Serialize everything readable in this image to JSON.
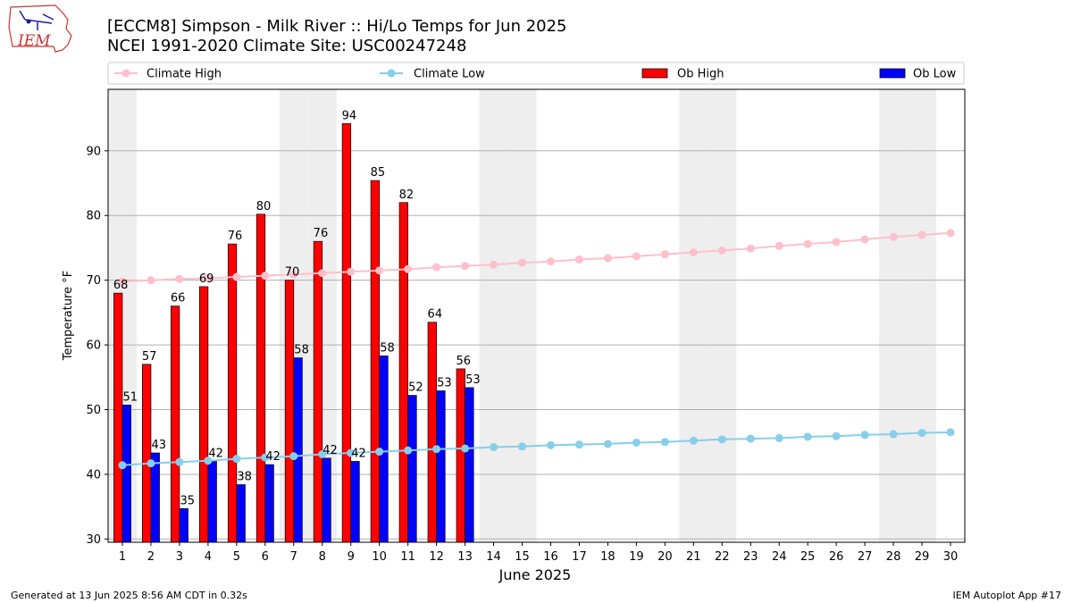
{
  "header": {
    "title_line1": "[ECCM8] Simpson - Milk River :: Hi/Lo Temps for Jun 2025",
    "title_line2": "NCEI 1991-2020 Climate Site: USC00247248",
    "logo_text": "IEM"
  },
  "footer": {
    "left": "Generated at 13 Jun 2025 8:56 AM CDT in 0.32s",
    "right": "IEM Autoplot App #17"
  },
  "colors": {
    "ob_high": "#ff0000",
    "ob_low": "#0000ff",
    "climate_high": "#ffc0cb",
    "climate_low": "#87ceeb",
    "weekend_shade": "#eeeeee",
    "grid": "#b0b0b0",
    "logo": "#cc3333"
  },
  "chart_data": {
    "type": "bar",
    "xlabel": "June 2025",
    "ylabel": "Temperature °F",
    "ylim": [
      29.5,
      99.5
    ],
    "yticks": [
      30,
      40,
      50,
      60,
      70,
      80,
      90
    ],
    "x_days": [
      1,
      2,
      3,
      4,
      5,
      6,
      7,
      8,
      9,
      10,
      11,
      12,
      13,
      14,
      15,
      16,
      17,
      18,
      19,
      20,
      21,
      22,
      23,
      24,
      25,
      26,
      27,
      28,
      29,
      30
    ],
    "x_ticklabels": [
      "1",
      "2",
      "3",
      "4",
      "5",
      "6",
      "7",
      "8",
      "9",
      "10",
      "11",
      "12",
      "13",
      "14",
      "15",
      "16",
      "17",
      "18",
      "19",
      "20",
      "21",
      "22",
      "23",
      "24",
      "25",
      "26",
      "27",
      "28",
      "29",
      "30"
    ],
    "grid": "horizontal",
    "legend_position": "top",
    "legend": [
      "Climate High",
      "Climate Low",
      "Ob High",
      "Ob Low"
    ],
    "shaded_days": [
      1,
      7,
      8,
      14,
      15,
      21,
      22,
      28,
      29
    ],
    "series": [
      {
        "name": "Ob High",
        "kind": "bar",
        "days": [
          1,
          2,
          3,
          4,
          5,
          6,
          7,
          8,
          9,
          10,
          11,
          12,
          13
        ],
        "values": [
          68,
          57,
          66,
          69,
          75.6,
          80.2,
          70,
          76,
          94.2,
          85.4,
          82,
          63.5,
          56.3
        ],
        "labels": [
          "68",
          "57",
          "66",
          "69",
          "76",
          "80",
          "70",
          "76",
          "94",
          "85",
          "82",
          "64",
          "56"
        ]
      },
      {
        "name": "Ob Low",
        "kind": "bar",
        "days": [
          1,
          2,
          3,
          4,
          5,
          6,
          7,
          8,
          9,
          10,
          11,
          12,
          13
        ],
        "values": [
          50.7,
          43.3,
          34.7,
          42,
          38.4,
          41.5,
          58,
          42.5,
          42,
          58.3,
          52.2,
          52.9,
          53.4
        ],
        "labels": [
          "51",
          "43",
          "35",
          "42",
          "38",
          "42",
          "58",
          "42",
          "42",
          "58",
          "52",
          "53",
          "53"
        ]
      },
      {
        "name": "Climate High",
        "kind": "line",
        "days": [
          1,
          2,
          3,
          4,
          5,
          6,
          7,
          8,
          9,
          10,
          11,
          12,
          13,
          14,
          15,
          16,
          17,
          18,
          19,
          20,
          21,
          22,
          23,
          24,
          25,
          26,
          27,
          28,
          29,
          30
        ],
        "values": [
          69.8,
          70.0,
          70.2,
          70.3,
          70.5,
          70.7,
          70.9,
          71.1,
          71.3,
          71.5,
          71.7,
          72.0,
          72.2,
          72.4,
          72.7,
          72.9,
          73.2,
          73.4,
          73.7,
          74.0,
          74.3,
          74.6,
          74.9,
          75.3,
          75.6,
          75.9,
          76.3,
          76.7,
          77.0,
          77.3
        ]
      },
      {
        "name": "Climate Low",
        "kind": "line",
        "days": [
          1,
          2,
          3,
          4,
          5,
          6,
          7,
          8,
          9,
          10,
          11,
          12,
          13,
          14,
          15,
          16,
          17,
          18,
          19,
          20,
          21,
          22,
          23,
          24,
          25,
          26,
          27,
          28,
          29,
          30
        ],
        "values": [
          41.4,
          41.7,
          41.9,
          42.1,
          42.4,
          42.6,
          42.8,
          43.1,
          43.3,
          43.5,
          43.7,
          43.9,
          44.0,
          44.2,
          44.3,
          44.5,
          44.6,
          44.7,
          44.9,
          45.0,
          45.2,
          45.4,
          45.5,
          45.6,
          45.8,
          45.9,
          46.1,
          46.2,
          46.4,
          46.5
        ]
      }
    ]
  }
}
